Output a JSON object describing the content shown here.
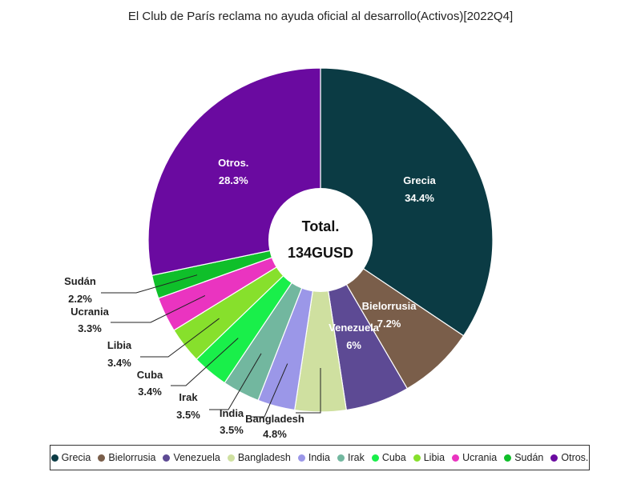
{
  "chart_data": {
    "type": "pie",
    "title": "El Club de París reclama no ayuda oficial al desarrollo(Activos)[2022Q4]",
    "center_label": {
      "line1": "Total.",
      "line2": "134GUSD"
    },
    "slices": [
      {
        "name": "Grecia",
        "percent": 34.4,
        "label": "34.4%",
        "color": "#0b3b44"
      },
      {
        "name": "Bielorrusia",
        "percent": 7.2,
        "label": "7.2%",
        "color": "#7a5e4a"
      },
      {
        "name": "Venezuela",
        "percent": 6.0,
        "label": "6%",
        "color": "#5d4a94"
      },
      {
        "name": "Bangladesh",
        "percent": 4.8,
        "label": "4.8%",
        "color": "#cfe0a0"
      },
      {
        "name": "India",
        "percent": 3.5,
        "label": "3.5%",
        "color": "#9b97e8"
      },
      {
        "name": "Irak",
        "percent": 3.5,
        "label": "3.5%",
        "color": "#72b79f"
      },
      {
        "name": "Cuba",
        "percent": 3.4,
        "label": "3.4%",
        "color": "#19ef4a"
      },
      {
        "name": "Libia",
        "percent": 3.4,
        "label": "3.4%",
        "color": "#87e02c"
      },
      {
        "name": "Ucrania",
        "percent": 3.3,
        "label": "3.3%",
        "color": "#ea34c0"
      },
      {
        "name": "Sudán",
        "percent": 2.2,
        "label": "2.2%",
        "color": "#0fbf2a"
      },
      {
        "name": "Otros.",
        "percent": 28.3,
        "label": "28.3%",
        "color": "#6a0aa0"
      }
    ]
  }
}
